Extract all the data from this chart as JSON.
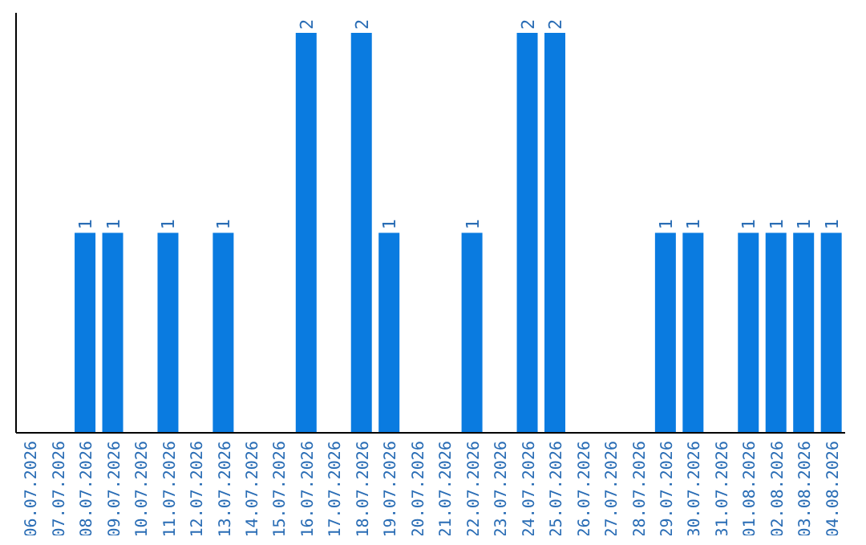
{
  "chart_data": {
    "type": "bar",
    "categories": [
      "06.07.2026",
      "07.07.2026",
      "08.07.2026",
      "09.07.2026",
      "10.07.2026",
      "11.07.2026",
      "12.07.2026",
      "13.07.2026",
      "14.07.2026",
      "15.07.2026",
      "16.07.2026",
      "17.07.2026",
      "18.07.2026",
      "19.07.2026",
      "20.07.2026",
      "21.07.2026",
      "22.07.2026",
      "23.07.2026",
      "24.07.2026",
      "25.07.2026",
      "26.07.2026",
      "27.07.2026",
      "28.07.2026",
      "29.07.2026",
      "30.07.2026",
      "31.07.2026",
      "01.08.2026",
      "02.08.2026",
      "03.08.2026",
      "04.08.2026"
    ],
    "values": [
      0,
      0,
      1,
      1,
      0,
      1,
      0,
      1,
      0,
      0,
      2,
      0,
      2,
      1,
      0,
      0,
      1,
      0,
      2,
      2,
      0,
      0,
      0,
      1,
      1,
      0,
      1,
      1,
      1,
      1
    ],
    "value_labels": [
      null,
      null,
      "1",
      "1",
      null,
      "1",
      null,
      "1",
      null,
      null,
      "2",
      null,
      "2",
      "1",
      null,
      null,
      "1",
      null,
      "2",
      "2",
      null,
      null,
      null,
      "1",
      "1",
      null,
      "1",
      "1",
      "1",
      "1"
    ],
    "color": "#0a7be0",
    "ylim": [
      0,
      2.1
    ],
    "tick_labels": "x"
  }
}
